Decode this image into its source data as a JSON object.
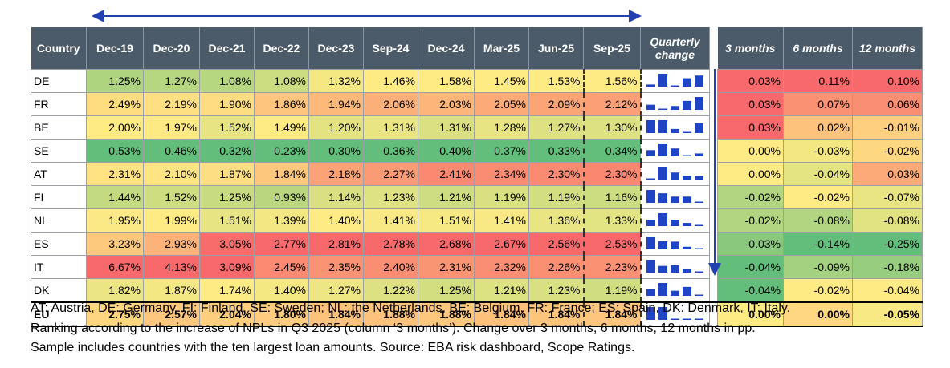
{
  "table": {
    "header": [
      "Country",
      "Dec-19",
      "Dec-20",
      "Dec-21",
      "Dec-22",
      "Dec-23",
      "Sep-24",
      "Dec-24",
      "Mar-25",
      "Jun-25",
      "Sep-25",
      "Quarterly change",
      "3 months",
      "6 months",
      "12 months"
    ],
    "rows": [
      {
        "country": "DE",
        "values": [
          "1.25%",
          "1.27%",
          "1.08%",
          "1.08%",
          "1.32%",
          "1.46%",
          "1.58%",
          "1.45%",
          "1.53%",
          "1.56%"
        ],
        "changes": [
          "0.03%",
          "0.11%",
          "0.10%"
        ]
      },
      {
        "country": "FR",
        "values": [
          "2.49%",
          "2.19%",
          "1.90%",
          "1.86%",
          "1.94%",
          "2.06%",
          "2.03%",
          "2.05%",
          "2.09%",
          "2.12%"
        ],
        "changes": [
          "0.03%",
          "0.07%",
          "0.06%"
        ]
      },
      {
        "country": "BE",
        "values": [
          "2.00%",
          "1.97%",
          "1.52%",
          "1.49%",
          "1.20%",
          "1.31%",
          "1.31%",
          "1.28%",
          "1.27%",
          "1.30%"
        ],
        "changes": [
          "0.03%",
          "0.02%",
          "-0.01%"
        ]
      },
      {
        "country": "SE",
        "values": [
          "0.53%",
          "0.46%",
          "0.32%",
          "0.23%",
          "0.30%",
          "0.36%",
          "0.40%",
          "0.37%",
          "0.33%",
          "0.34%"
        ],
        "changes": [
          "0.00%",
          "-0.03%",
          "-0.02%"
        ]
      },
      {
        "country": "AT",
        "values": [
          "2.31%",
          "2.10%",
          "1.87%",
          "1.84%",
          "2.18%",
          "2.27%",
          "2.41%",
          "2.34%",
          "2.30%",
          "2.30%"
        ],
        "changes": [
          "0.00%",
          "-0.04%",
          "0.03%"
        ]
      },
      {
        "country": "FI",
        "values": [
          "1.44%",
          "1.52%",
          "1.25%",
          "0.93%",
          "1.14%",
          "1.23%",
          "1.21%",
          "1.19%",
          "1.19%",
          "1.16%"
        ],
        "changes": [
          "-0.02%",
          "-0.02%",
          "-0.07%"
        ]
      },
      {
        "country": "NL",
        "values": [
          "1.95%",
          "1.99%",
          "1.51%",
          "1.39%",
          "1.40%",
          "1.41%",
          "1.51%",
          "1.41%",
          "1.36%",
          "1.33%"
        ],
        "changes": [
          "-0.02%",
          "-0.08%",
          "-0.08%"
        ]
      },
      {
        "country": "ES",
        "values": [
          "3.23%",
          "2.93%",
          "3.05%",
          "2.77%",
          "2.81%",
          "2.78%",
          "2.68%",
          "2.67%",
          "2.56%",
          "2.53%"
        ],
        "changes": [
          "-0.03%",
          "-0.14%",
          "-0.25%"
        ]
      },
      {
        "country": "IT",
        "values": [
          "6.67%",
          "4.13%",
          "3.09%",
          "2.45%",
          "2.35%",
          "2.40%",
          "2.31%",
          "2.32%",
          "2.26%",
          "2.23%"
        ],
        "changes": [
          "-0.04%",
          "-0.09%",
          "-0.18%"
        ]
      },
      {
        "country": "DK",
        "values": [
          "1.82%",
          "1.87%",
          "1.74%",
          "1.40%",
          "1.27%",
          "1.22%",
          "1.25%",
          "1.21%",
          "1.23%",
          "1.19%"
        ],
        "changes": [
          "-0.04%",
          "-0.02%",
          "-0.04%"
        ]
      },
      {
        "country": "EU",
        "values": [
          "2.75%",
          "2.57%",
          "2.04%",
          "1.80%",
          "1.84%",
          "1.88%",
          "1.88%",
          "1.84%",
          "1.84%",
          "1.84%"
        ],
        "changes": [
          "0.00%",
          "0.00%",
          "-0.05%"
        ]
      }
    ],
    "footnote": [
      "AT: Austria, DE: Germany, FI: Finland, SE: Sweden; NL: the Netherlands, BE: Belgium, FR: France; ES: Spain, DK: Denmark, IT: Italy.",
      "Ranking according to the increase of NPLs in Q3 2025 (column ‘3 months’). Change over 3 months, 6 months, 12 months in pp.",
      "Sample includes countries with the ten largest loan amounts. Source: EBA risk dashboard, Scope Ratings."
    ]
  }
}
